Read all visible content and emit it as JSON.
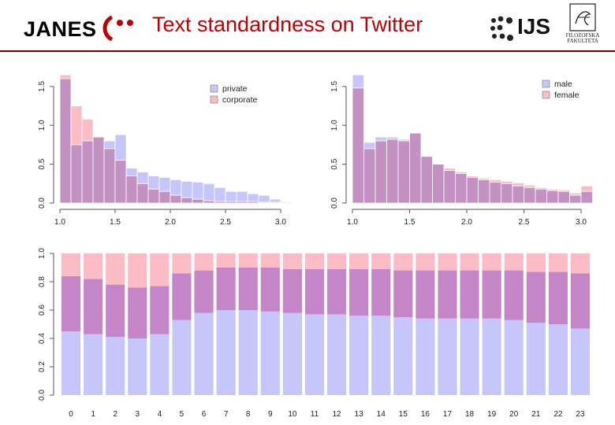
{
  "header": {
    "title": "Text standardness on Twitter",
    "logo_janes": "JANES",
    "logo_ijs": "IJS",
    "logo_ff": "FILOZOFSKA FAKULTETA"
  },
  "colors": {
    "title": "#c00000",
    "rule": "#7a0000",
    "blue": "#c6c6fb",
    "pink": "#fcbcc5",
    "overlap": "#c486c6",
    "janes_mark": "#c00000"
  },
  "chart_data": [
    {
      "type": "histogram",
      "xlim": [
        1.0,
        3.0
      ],
      "ylim": [
        0,
        1.6
      ],
      "xticks": [
        "1.0",
        "1.5",
        "2.0",
        "2.5",
        "3.0"
      ],
      "yticks": [
        "0.0",
        "0.5",
        "1.0",
        "1.5"
      ],
      "bin_width": 0.1,
      "bin_start": 1.0,
      "legend": {
        "position": "top-right"
      },
      "series": [
        {
          "name": "private",
          "color": "#c6c6fb",
          "values": [
            1.6,
            0.75,
            0.8,
            0.85,
            0.8,
            0.88,
            0.45,
            0.4,
            0.35,
            0.33,
            0.3,
            0.28,
            0.27,
            0.25,
            0.2,
            0.15,
            0.15,
            0.12,
            0.1,
            0.05,
            0.02
          ]
        },
        {
          "name": "corporate",
          "color": "#fcbcc5",
          "values": [
            1.65,
            1.25,
            1.08,
            0.85,
            0.7,
            0.55,
            0.35,
            0.25,
            0.18,
            0.15,
            0.1,
            0.07,
            0.05,
            0.03,
            0.02,
            0.02,
            0.02,
            0.02,
            0.01,
            0.01,
            0.01
          ]
        }
      ]
    },
    {
      "type": "histogram",
      "xlim": [
        1.0,
        3.0
      ],
      "ylim": [
        0,
        1.6
      ],
      "xticks": [
        "1.0",
        "1.5",
        "2.0",
        "2.5",
        "3.0"
      ],
      "yticks": [
        "0.0",
        "0.5",
        "1.0",
        "1.5"
      ],
      "bin_width": 0.1,
      "bin_start": 1.0,
      "legend": {
        "position": "top-right"
      },
      "series": [
        {
          "name": "male",
          "color": "#c6c6fb",
          "values": [
            1.65,
            0.78,
            0.85,
            0.85,
            0.82,
            0.9,
            0.6,
            0.5,
            0.42,
            0.38,
            0.33,
            0.3,
            0.27,
            0.25,
            0.22,
            0.2,
            0.18,
            0.16,
            0.15,
            0.1,
            0.15
          ]
        },
        {
          "name": "female",
          "color": "#fcbcc5",
          "values": [
            1.48,
            0.7,
            0.8,
            0.82,
            0.8,
            0.9,
            0.6,
            0.5,
            0.45,
            0.4,
            0.35,
            0.32,
            0.3,
            0.28,
            0.26,
            0.23,
            0.2,
            0.18,
            0.17,
            0.13,
            0.22
          ]
        }
      ]
    },
    {
      "type": "bar",
      "stacked": true,
      "categories": [
        "0",
        "1",
        "2",
        "3",
        "4",
        "5",
        "6",
        "7",
        "8",
        "9",
        "10",
        "11",
        "12",
        "13",
        "14",
        "15",
        "16",
        "17",
        "18",
        "19",
        "20",
        "21",
        "22",
        "23"
      ],
      "ylim": [
        0,
        1.0
      ],
      "yticks": [
        "0.0",
        "0.2",
        "0.4",
        "0.6",
        "0.8",
        "1.0"
      ],
      "series": [
        {
          "color": "#c6c6fb",
          "values": [
            0.45,
            0.43,
            0.41,
            0.4,
            0.43,
            0.53,
            0.58,
            0.6,
            0.6,
            0.59,
            0.58,
            0.57,
            0.57,
            0.56,
            0.56,
            0.55,
            0.54,
            0.54,
            0.54,
            0.54,
            0.53,
            0.51,
            0.5,
            0.47
          ]
        },
        {
          "color": "#c486c6",
          "values": [
            0.39,
            0.39,
            0.37,
            0.36,
            0.34,
            0.33,
            0.3,
            0.3,
            0.3,
            0.31,
            0.31,
            0.32,
            0.32,
            0.33,
            0.33,
            0.33,
            0.34,
            0.34,
            0.34,
            0.34,
            0.35,
            0.36,
            0.37,
            0.39
          ]
        },
        {
          "color": "#fcbcc5",
          "values": [
            0.16,
            0.18,
            0.22,
            0.24,
            0.23,
            0.14,
            0.12,
            0.1,
            0.1,
            0.1,
            0.11,
            0.11,
            0.11,
            0.11,
            0.11,
            0.12,
            0.12,
            0.12,
            0.12,
            0.12,
            0.12,
            0.13,
            0.13,
            0.14
          ]
        }
      ]
    }
  ]
}
